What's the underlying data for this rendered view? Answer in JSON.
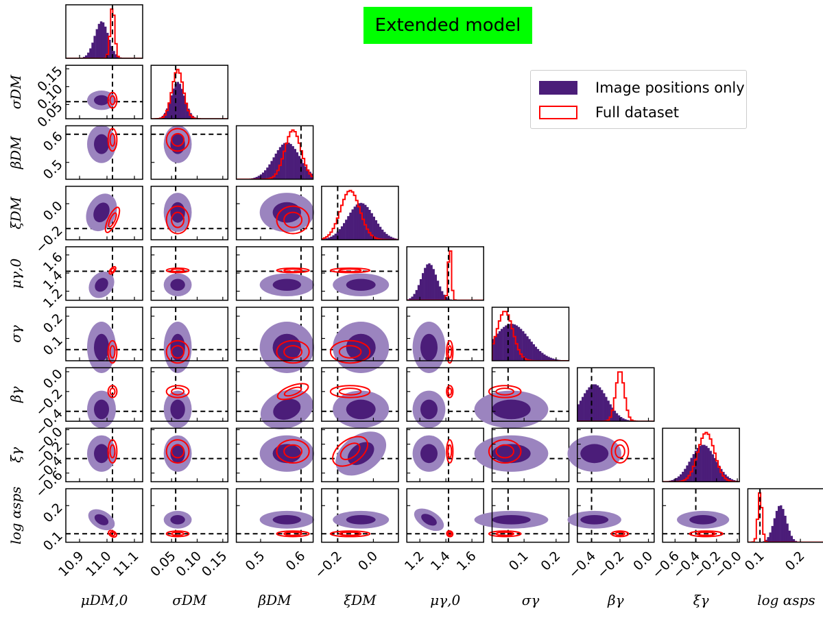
{
  "chart_data": {
    "type": "corner",
    "title": "Extended model",
    "colors": {
      "title_background": "#00ff00",
      "posterior_dark": "#4b1d79",
      "posterior_light": "#9b84bf",
      "full_dataset": "#ff0000",
      "truth_line": "#000000"
    },
    "legend": [
      {
        "label": "Image positions only",
        "style": "filled",
        "color": "#4b1d79"
      },
      {
        "label": "Full dataset",
        "style": "outline",
        "color": "#ff0000"
      }
    ],
    "parameters": [
      {
        "name": "mu_DM0",
        "label": "μDM,0",
        "range": [
          10.85,
          11.13
        ],
        "ticks": [
          10.9,
          11.0,
          11.1
        ],
        "tick_labels": [
          "10.9",
          "11.0",
          "11.1"
        ],
        "truth": 11.02
      },
      {
        "name": "sigma_DM",
        "label": "σDM",
        "range": [
          0.01,
          0.16
        ],
        "ticks": [
          0.05,
          0.1,
          0.15
        ],
        "tick_labels": [
          "0.05",
          "0.10",
          "0.15"
        ],
        "truth": 0.058
      },
      {
        "name": "beta_DM",
        "label": "βDM",
        "range": [
          0.44,
          0.63
        ],
        "ticks": [
          0.5,
          0.6
        ],
        "tick_labels": [
          "0.5",
          "0.6"
        ],
        "truth": 0.6
      },
      {
        "name": "xi_DM",
        "label": "ξDM",
        "range": [
          -0.29,
          0.14
        ],
        "ticks": [
          -0.2,
          0.0
        ],
        "tick_labels": [
          "−0.2",
          "0.0"
        ],
        "truth": -0.2
      },
      {
        "name": "mu_gamma0",
        "label": "μγ,0",
        "range": [
          1.1,
          1.69
        ],
        "ticks": [
          1.2,
          1.4,
          1.6
        ],
        "tick_labels": [
          "1.2",
          "1.4",
          "1.6"
        ],
        "truth": 1.42
      },
      {
        "name": "sigma_gamma",
        "label": "σγ",
        "range": [
          0.0,
          0.24
        ],
        "ticks": [
          0.1,
          0.2
        ],
        "tick_labels": [
          "0.1",
          "0.2"
        ],
        "truth": 0.05
      },
      {
        "name": "beta_gamma",
        "label": "βγ",
        "range": [
          -0.5,
          0.04
        ],
        "ticks": [
          -0.4,
          -0.2,
          0.0
        ],
        "tick_labels": [
          "−0.4",
          "−0.2",
          "0.0"
        ],
        "truth": -0.4
      },
      {
        "name": "xi_gamma",
        "label": "ξγ",
        "range": [
          -0.72,
          0.02
        ],
        "ticks": [
          -0.6,
          -0.4,
          -0.2,
          0.0
        ],
        "tick_labels": [
          "−0.6",
          "−0.4",
          "−0.2",
          "−0.0"
        ],
        "truth": -0.4
      },
      {
        "name": "log_alpha_sps",
        "label": "log αsps",
        "range": [
          0.07,
          0.26
        ],
        "ticks": [
          0.1,
          0.2
        ],
        "tick_labels": [
          "0.1",
          "0.2"
        ],
        "truth": 0.1
      }
    ],
    "diagonal_histograms": [
      {
        "param": "mu_DM0",
        "image_positions_only": {
          "mean": 10.98,
          "std": 0.025
        },
        "full_dataset": {
          "mean": 11.02,
          "std": 0.008
        }
      },
      {
        "param": "sigma_DM",
        "image_positions_only": {
          "mean": 0.062,
          "std": 0.013
        },
        "full_dataset": {
          "mean": 0.062,
          "std": 0.011
        }
      },
      {
        "param": "beta_DM",
        "image_positions_only": {
          "mean": 0.565,
          "std": 0.032
        },
        "full_dataset": {
          "mean": 0.58,
          "std": 0.02
        }
      },
      {
        "param": "xi_DM",
        "image_positions_only": {
          "mean": -0.07,
          "std": 0.075
        },
        "full_dataset": {
          "mean": -0.13,
          "std": 0.055
        }
      },
      {
        "param": "mu_gamma0",
        "image_positions_only": {
          "mean": 1.27,
          "std": 0.06
        },
        "full_dataset": {
          "mean": 1.43,
          "std": 0.012
        }
      },
      {
        "param": "sigma_gamma",
        "image_positions_only": {
          "mean": 0.06,
          "std": 0.055
        },
        "full_dataset": {
          "mean": 0.04,
          "std": 0.025
        }
      },
      {
        "param": "beta_gamma",
        "image_positions_only": {
          "mean": -0.38,
          "std": 0.09
        },
        "full_dataset": {
          "mean": -0.2,
          "std": 0.03
        }
      },
      {
        "param": "xi_gamma",
        "image_positions_only": {
          "mean": -0.33,
          "std": 0.12
        },
        "full_dataset": {
          "mean": -0.3,
          "std": 0.08
        }
      },
      {
        "param": "log_alpha_sps",
        "image_positions_only": {
          "mean": 0.15,
          "std": 0.015
        },
        "full_dataset": {
          "mean": 0.1,
          "std": 0.005
        }
      }
    ]
  }
}
